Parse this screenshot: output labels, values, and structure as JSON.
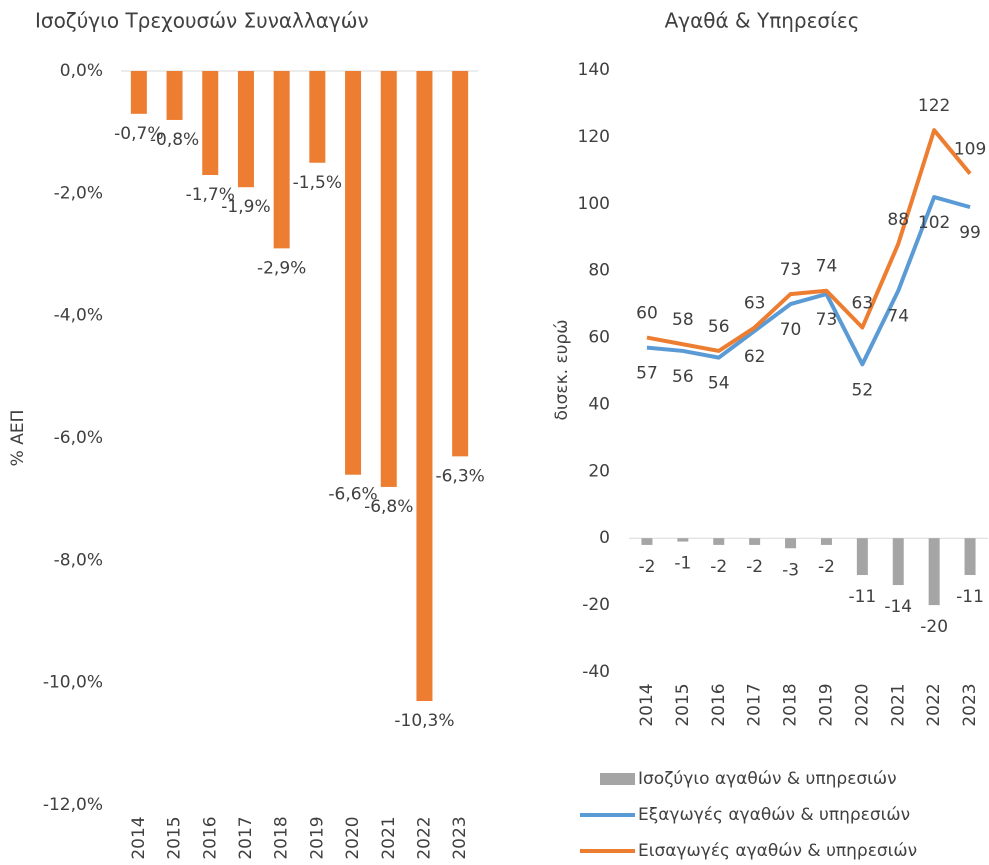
{
  "chart_data": [
    {
      "type": "bar",
      "title": "Ισοζύγιο Τρεχουσών Συναλλαγών",
      "y_label": "% ΑΕΠ",
      "categories": [
        "2014",
        "2015",
        "2016",
        "2017",
        "2018",
        "2019",
        "2020",
        "2021",
        "2022",
        "2023"
      ],
      "values": [
        -0.7,
        -0.8,
        -1.7,
        -1.9,
        -2.9,
        -1.5,
        -6.6,
        -6.8,
        -10.3,
        -6.3
      ],
      "value_labels": [
        "-0,7%",
        "-0,8%",
        "-1,7%",
        "-1,9%",
        "-2,9%",
        "-1,5%",
        "-6,6%",
        "-6,8%",
        "-10,3%",
        "-6,3%"
      ],
      "color": "#ed7d31",
      "ylim": [
        -12,
        0
      ],
      "yticks": [
        {
          "value": 0,
          "label": "0,0%"
        },
        {
          "value": -2,
          "label": "-2,0%"
        },
        {
          "value": -4,
          "label": "-4,0%"
        },
        {
          "value": -6,
          "label": "-6,0%"
        },
        {
          "value": -8,
          "label": "-8,0%"
        },
        {
          "value": -10,
          "label": "-10,0%"
        },
        {
          "value": -12,
          "label": "-12,0%"
        }
      ],
      "grid": false
    },
    {
      "type": "combo",
      "title": "Αγαθά & Υπηρεσίες",
      "y_label": "δισεκ. ευρώ",
      "categories": [
        "2014",
        "2015",
        "2016",
        "2017",
        "2018",
        "2019",
        "2020",
        "2021",
        "2022",
        "2023"
      ],
      "series": [
        {
          "name": "Ισοζύγιο αγαθών & υπηρεσιών",
          "type": "bar",
          "color": "#a5a5a5",
          "values": [
            -2,
            -1,
            -2,
            -2,
            -3,
            -2,
            -11,
            -14,
            -20,
            -11
          ]
        },
        {
          "name": "Εξαγωγές αγαθών & υπηρεσιών",
          "type": "line",
          "color": "#5b9bd5",
          "values": [
            57,
            56,
            54,
            62,
            70,
            73,
            52,
            74,
            102,
            99
          ]
        },
        {
          "name": "Εισαγωγές αγαθών & υπηρεσιών",
          "type": "line",
          "color": "#ed7d31",
          "values": [
            60,
            58,
            56,
            63,
            73,
            74,
            63,
            88,
            122,
            109
          ]
        }
      ],
      "ylim": [
        -40,
        140
      ],
      "yticks": [
        -40,
        -20,
        0,
        20,
        40,
        60,
        80,
        100,
        120,
        140
      ],
      "grid": false,
      "legend": "bottom"
    }
  ]
}
